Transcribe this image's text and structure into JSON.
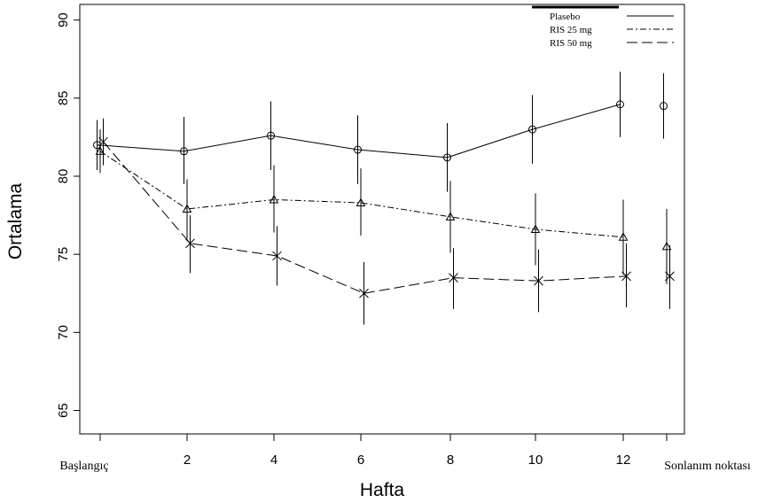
{
  "chart_data": {
    "type": "line",
    "xlabel": "Hafta",
    "ylabel": "Ortalama",
    "categories": [
      "Başlangıç",
      "2",
      "4",
      "6",
      "8",
      "10",
      "12",
      "Sonlanım noktası"
    ],
    "ylim": [
      63.5,
      91
    ],
    "yticks": [
      65,
      70,
      75,
      80,
      85,
      90
    ],
    "grid": false,
    "legend_position": "top-right",
    "series": [
      {
        "name": "Plasebo",
        "line_style": "solid",
        "marker": "circle",
        "values": [
          82.0,
          81.6,
          82.6,
          81.7,
          81.2,
          83.0,
          84.6,
          84.5
        ],
        "error_low": [
          80.4,
          79.5,
          80.4,
          79.5,
          79.0,
          80.8,
          82.5,
          82.4
        ],
        "error_high": [
          83.6,
          83.8,
          84.8,
          83.9,
          83.4,
          85.2,
          86.7,
          86.6
        ],
        "connected_points": 7
      },
      {
        "name": "RIS 25 mg",
        "line_style": "dash-dot",
        "marker": "triangle",
        "values": [
          81.6,
          77.9,
          78.5,
          78.3,
          77.4,
          76.6,
          76.1,
          75.5
        ],
        "error_low": [
          80.2,
          76.0,
          76.4,
          76.2,
          75.1,
          74.3,
          73.7,
          73.1
        ],
        "error_high": [
          83.0,
          79.8,
          80.7,
          80.5,
          79.7,
          78.9,
          78.5,
          77.9
        ],
        "connected_points": 7
      },
      {
        "name": "RIS 50 mg",
        "line_style": "long-dash",
        "marker": "cross",
        "values": [
          82.2,
          75.7,
          74.9,
          72.5,
          73.5,
          73.3,
          73.6,
          73.6
        ],
        "error_low": [
          80.7,
          73.8,
          73.0,
          70.5,
          71.5,
          71.3,
          71.6,
          71.5
        ],
        "error_high": [
          83.7,
          77.5,
          76.8,
          74.5,
          75.4,
          75.3,
          75.7,
          75.6
        ],
        "connected_points": 7
      }
    ]
  }
}
